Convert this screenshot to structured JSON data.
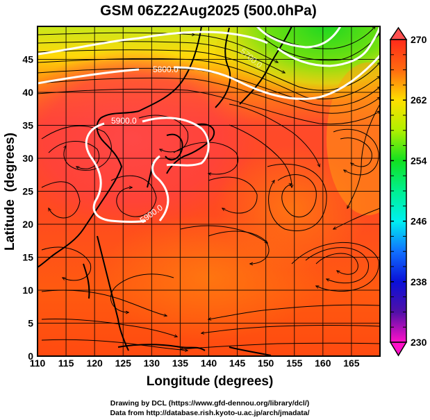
{
  "chart_data": {
    "type": "heatmap",
    "title": "GSM 06Z22Aug2025 (500.0hPa)",
    "xlabel": "Longitude (degrees)",
    "ylabel": "Latitude  (degrees)",
    "xlim": [
      110,
      170
    ],
    "ylim": [
      0,
      50
    ],
    "x_ticks": [
      110,
      115,
      120,
      125,
      130,
      135,
      140,
      145,
      150,
      155,
      160,
      165
    ],
    "y_ticks": [
      0,
      5,
      10,
      15,
      20,
      25,
      30,
      35,
      40,
      45
    ],
    "grid": true,
    "colorbar": {
      "min": 230,
      "max": 270,
      "ticks": [
        230,
        238,
        246,
        254,
        262,
        270
      ],
      "extend": "both",
      "colors": {
        "270": "#ff2a1a",
        "262": "#ffdf00",
        "254": "#12e020",
        "246": "#00f0f0",
        "238": "#0a10d8",
        "230": "#ff10c8"
      },
      "placement": "right"
    },
    "contours": [
      {
        "value": 5700.0,
        "label": "5700.0"
      },
      {
        "value": 5800.0,
        "label": "5800.0"
      },
      {
        "value": 5900.0,
        "label": "5900.0"
      },
      {
        "value": 5900.0,
        "label": "5900.0"
      }
    ],
    "overlay": "streamlines",
    "field_description_values": {
      "max_region_lon_lat": [
        128,
        33
      ],
      "min_region_lon_lat": [
        152,
        50
      ]
    }
  },
  "credits": {
    "line1": "Drawing by DCL (https://www.gfd-dennou.org/library/dcl/)",
    "line2": "Data from http://database.rish.kyoto-u.ac.jp/arch/jmadata/"
  }
}
